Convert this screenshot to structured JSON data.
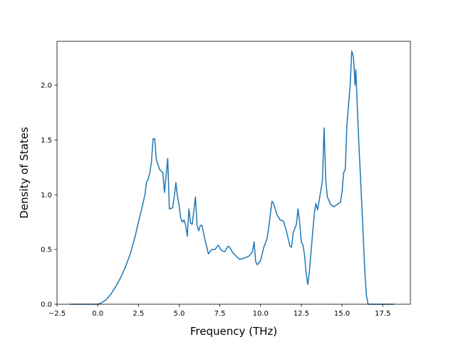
{
  "chart_data": {
    "type": "line",
    "title": "",
    "xlabel": "Frequency (THz)",
    "ylabel": "Density of States",
    "xlim": [
      -2.5,
      19.2
    ],
    "ylim": [
      0,
      2.4
    ],
    "xticks": [
      -2.5,
      0.0,
      2.5,
      5.0,
      7.5,
      10.0,
      12.5,
      15.0,
      17.5
    ],
    "xtick_labels": [
      "−2.5",
      "0.0",
      "2.5",
      "5.0",
      "7.5",
      "10.0",
      "12.5",
      "15.0",
      "17.5"
    ],
    "yticks": [
      0.0,
      0.5,
      1.0,
      1.5,
      2.0
    ],
    "ytick_labels": [
      "0.0",
      "0.5",
      "1.0",
      "1.5",
      "2.0"
    ],
    "grid": false,
    "legend": "none",
    "series": [
      {
        "color": "#1f77b4",
        "x": [
          -1.7,
          0.0,
          0.2,
          0.5,
          0.8,
          1.1,
          1.4,
          1.7,
          2.0,
          2.3,
          2.5,
          2.7,
          2.9,
          3.0,
          3.1,
          3.2,
          3.3,
          3.4,
          3.5,
          3.6,
          3.8,
          4.0,
          4.1,
          4.3,
          4.4,
          4.6,
          4.7,
          4.8,
          4.9,
          5.0,
          5.1,
          5.2,
          5.3,
          5.4,
          5.5,
          5.6,
          5.7,
          5.8,
          5.9,
          6.0,
          6.1,
          6.2,
          6.3,
          6.4,
          6.6,
          6.8,
          7.0,
          7.2,
          7.4,
          7.6,
          7.8,
          8.0,
          8.1,
          8.3,
          8.5,
          8.7,
          9.0,
          9.3,
          9.5,
          9.6,
          9.7,
          9.8,
          10.0,
          10.2,
          10.4,
          10.5,
          10.7,
          10.8,
          11.0,
          11.2,
          11.4,
          11.6,
          11.8,
          11.9,
          12.0,
          12.2,
          12.3,
          12.4,
          12.5,
          12.6,
          12.7,
          12.8,
          12.9,
          13.0,
          13.1,
          13.3,
          13.4,
          13.5,
          13.6,
          13.8,
          13.9,
          14.0,
          14.1,
          14.3,
          14.5,
          14.7,
          14.9,
          15.0,
          15.1,
          15.2,
          15.3,
          15.5,
          15.6,
          15.7,
          15.75,
          15.8,
          15.85,
          16.0,
          16.2,
          16.4,
          16.5,
          16.6,
          16.7,
          16.8,
          18.2
        ],
        "y": [
          0.0,
          0.0,
          0.01,
          0.04,
          0.09,
          0.16,
          0.24,
          0.34,
          0.46,
          0.62,
          0.75,
          0.87,
          1.0,
          1.12,
          1.14,
          1.2,
          1.3,
          1.51,
          1.51,
          1.32,
          1.23,
          1.2,
          1.02,
          1.33,
          0.87,
          0.88,
          0.98,
          1.11,
          0.98,
          0.9,
          0.78,
          0.75,
          0.77,
          0.72,
          0.62,
          0.87,
          0.74,
          0.73,
          0.85,
          0.98,
          0.72,
          0.67,
          0.72,
          0.72,
          0.58,
          0.46,
          0.5,
          0.5,
          0.54,
          0.49,
          0.48,
          0.53,
          0.52,
          0.47,
          0.44,
          0.41,
          0.42,
          0.44,
          0.48,
          0.57,
          0.39,
          0.36,
          0.4,
          0.52,
          0.6,
          0.7,
          0.94,
          0.92,
          0.82,
          0.77,
          0.76,
          0.66,
          0.53,
          0.52,
          0.65,
          0.73,
          0.87,
          0.75,
          0.57,
          0.54,
          0.45,
          0.28,
          0.18,
          0.3,
          0.48,
          0.83,
          0.92,
          0.86,
          0.95,
          1.13,
          1.61,
          1.14,
          0.98,
          0.91,
          0.89,
          0.91,
          0.93,
          1.02,
          1.2,
          1.23,
          1.63,
          2.0,
          2.31,
          2.26,
          2.15,
          2.0,
          2.14,
          1.58,
          0.96,
          0.3,
          0.08,
          0.0,
          0.0,
          0.0,
          0.0
        ]
      }
    ]
  }
}
